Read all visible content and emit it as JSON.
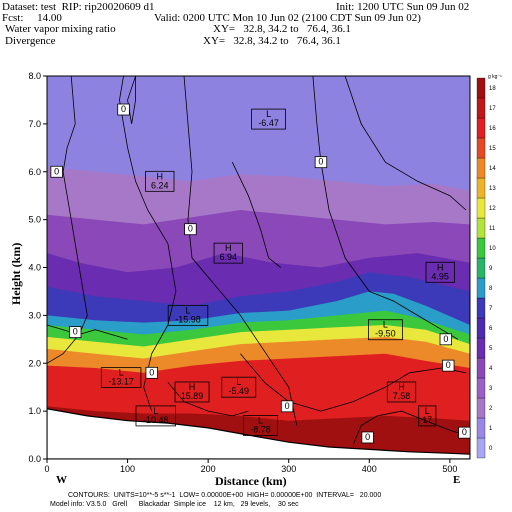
{
  "header": {
    "dataset": "Dataset: test  RIP: rip20020609 d1",
    "init": "Init: 1200 UTC Sun 09 Jun 02",
    "fcst": "Fcst:     14.00",
    "valid": "Valid: 0200 UTC Mon 10 Jun 02 (2100 CDT Sun 09 Jun 02)",
    "field1": "Water vapor mixing ratio",
    "field1_xy": "XY=   32.8, 34.2 to   76.4, 36.1",
    "field2": "Divergence",
    "field2_xy": "XY=   32.8, 34.2 to   76.4, 36.1"
  },
  "footer": {
    "contours": "CONTOURS:  UNITS=10**-5 s**-1  LOW= 0.00000E+00  HIGH= 0.00000E+00  INTERVAL=   20.000",
    "model_info": "Model info: V3.5.0   Grell      Blackadar  Simple ice    12 km,   29 levels,    30 sec"
  },
  "colors": {
    "high_band": "#8e82e0",
    "mid_purple": "#a878c8",
    "purple": "#8a48b8",
    "violet": "#6a2cb0",
    "blue": "#3c3ab8",
    "cyan": "#2a9ec8",
    "green": "#3cc83c",
    "yellow": "#e8e83c",
    "orange": "#ec8a2a",
    "red": "#e02020",
    "darkred": "#a01010"
  },
  "chart_data": {
    "type": "heatmap",
    "title": "Water vapor mixing ratio",
    "xlabel": "Distance (km)",
    "ylabel": "Height (km)",
    "x_ticks": [
      "0",
      "100",
      "200",
      "300",
      "400",
      "500"
    ],
    "y_ticks": [
      "0.0",
      "1.0",
      "2.0",
      "3.0",
      "4.0",
      "5.0",
      "6.0",
      "7.0",
      "8.0"
    ],
    "xlim": [
      0,
      525
    ],
    "ylim": [
      0,
      8
    ],
    "x_end_labels": {
      "left": "W",
      "right": "E"
    },
    "colorbar": {
      "unit_label": "g kg⁻¹",
      "levels": [
        "0",
        "1",
        "2",
        "3",
        "4",
        "5",
        "6",
        "7",
        "8",
        "9",
        "10",
        "11",
        "12",
        "13",
        "14",
        "15",
        "16",
        "17",
        "18"
      ],
      "colors": [
        "#a6a6f4",
        "#9a88e8",
        "#a878c8",
        "#9c60c4",
        "#8a48b8",
        "#6a2cb0",
        "#4c2cb0",
        "#3c3ab8",
        "#2a9ec8",
        "#2ab46a",
        "#3cc83c",
        "#b4e23c",
        "#e8e83c",
        "#ecb42a",
        "#ec8a2a",
        "#e64a24",
        "#e02020",
        "#c01818",
        "#a01010"
      ]
    },
    "labels": [
      {
        "text": "L\n-6.47",
        "x": 275,
        "y": 7.1
      },
      {
        "text": "H\n6.24",
        "x": 140,
        "y": 5.8
      },
      {
        "text": "H\n6.94",
        "x": 225,
        "y": 4.3
      },
      {
        "text": "H\n4.95",
        "x": 488,
        "y": 3.9
      },
      {
        "text": "L\n-15.98",
        "x": 175,
        "y": 3.0
      },
      {
        "text": "L\n-9.50",
        "x": 420,
        "y": 2.7
      },
      {
        "text": "L\n-13.17",
        "x": 92,
        "y": 1.7
      },
      {
        "text": "H\n15.89",
        "x": 180,
        "y": 1.4
      },
      {
        "text": "L\n-5.49",
        "x": 238,
        "y": 1.5
      },
      {
        "text": "H\n7.58",
        "x": 440,
        "y": 1.4
      },
      {
        "text": "L\n-10.48",
        "x": 135,
        "y": 0.9
      },
      {
        "text": "L\n-8.78",
        "x": 265,
        "y": 0.7
      },
      {
        "text": "L\n17",
        "x": 472,
        "y": 0.9
      },
      {
        "text": "0",
        "x": 95,
        "y": 7.3
      },
      {
        "text": "0",
        "x": 12,
        "y": 6.0
      },
      {
        "text": "0",
        "x": 340,
        "y": 6.2
      },
      {
        "text": "0",
        "x": 178,
        "y": 4.8
      },
      {
        "text": "0",
        "x": 35,
        "y": 2.65
      },
      {
        "text": "0",
        "x": 130,
        "y": 1.8
      },
      {
        "text": "0",
        "x": 298,
        "y": 1.1
      },
      {
        "text": "0",
        "x": 495,
        "y": 2.5
      },
      {
        "text": "0",
        "x": 498,
        "y": 1.95
      },
      {
        "text": "0",
        "x": 398,
        "y": 0.45
      },
      {
        "text": "0",
        "x": 518,
        "y": 0.55
      }
    ]
  }
}
